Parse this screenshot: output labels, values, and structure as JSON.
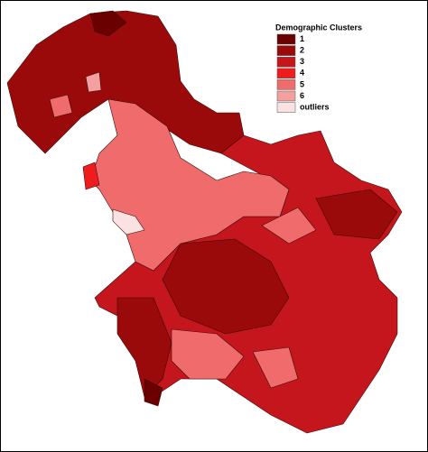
{
  "legend": {
    "title": "Demographic Clusters",
    "items": [
      {
        "label": "1",
        "color": "#6b0000"
      },
      {
        "label": "2",
        "color": "#9b0a0a"
      },
      {
        "label": "3",
        "color": "#c4161c"
      },
      {
        "label": "4",
        "color": "#ee1c1c"
      },
      {
        "label": "5",
        "color": "#f06c6c"
      },
      {
        "label": "6",
        "color": "#f4a0a0"
      },
      {
        "label": "outliers",
        "color": "#fbe2e2"
      }
    ]
  }
}
